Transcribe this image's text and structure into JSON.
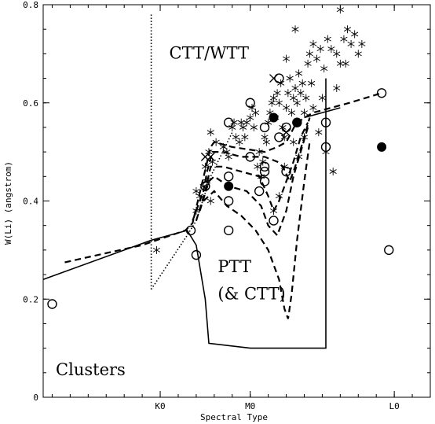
{
  "chart_data": {
    "type": "scatter",
    "xlabel": "Spectral Type",
    "ylabel": "W(Li) (angstrom)",
    "xlim": [
      -11.5,
      10
    ],
    "ylim": [
      0,
      0.8
    ],
    "x_ticks": [
      {
        "value": -5,
        "label": "K0"
      },
      {
        "value": 0,
        "label": "M0"
      },
      {
        "value": 8,
        "label": "L0"
      }
    ],
    "y_ticks": [
      {
        "value": 0,
        "label": "0"
      },
      {
        "value": 0.2,
        "label": "0.2"
      },
      {
        "value": 0.4,
        "label": "0.4"
      },
      {
        "value": 0.6,
        "label": "0.6"
      },
      {
        "value": 0.8,
        "label": "0.8"
      }
    ],
    "regions": [
      {
        "label": "CTT/WTT",
        "x": -4.5,
        "y": 0.69
      },
      {
        "label": "PTT",
        "x": -1.8,
        "y": 0.255
      },
      {
        "label": "(& CTT)",
        "x": -1.8,
        "y": 0.2
      },
      {
        "label": "Clusters",
        "x": -10.8,
        "y": 0.045
      }
    ],
    "series": [
      {
        "marker": "asterisk",
        "points": [
          [
            -5.2,
            0.3
          ],
          [
            -3.0,
            0.38
          ],
          [
            -3.0,
            0.42
          ],
          [
            -2.8,
            0.41
          ],
          [
            -2.6,
            0.43
          ],
          [
            -2.5,
            0.47
          ],
          [
            -2.3,
            0.5
          ],
          [
            -2.4,
            0.44
          ],
          [
            -2.2,
            0.4
          ],
          [
            -2.1,
            0.48
          ],
          [
            -2.2,
            0.54
          ],
          [
            -1.9,
            0.52
          ],
          [
            -1.5,
            0.51
          ],
          [
            -1.3,
            0.5
          ],
          [
            -1.2,
            0.49
          ],
          [
            -1.0,
            0.55
          ],
          [
            -0.9,
            0.56
          ],
          [
            -0.8,
            0.53
          ],
          [
            -0.6,
            0.52
          ],
          [
            -0.4,
            0.55
          ],
          [
            -0.2,
            0.56
          ],
          [
            0,
            0.57
          ],
          [
            0.2,
            0.55
          ],
          [
            0.3,
            0.58
          ],
          [
            0.4,
            0.47
          ],
          [
            0.6,
            0.45
          ],
          [
            0.7,
            0.48
          ],
          [
            0.8,
            0.53
          ],
          [
            0.9,
            0.52
          ],
          [
            1.0,
            0.56
          ],
          [
            1.1,
            0.58
          ],
          [
            1.2,
            0.6
          ],
          [
            1.3,
            0.61
          ],
          [
            1.4,
            0.57
          ],
          [
            1.5,
            0.62
          ],
          [
            1.6,
            0.6
          ],
          [
            1.7,
            0.64
          ],
          [
            1.8,
            0.55
          ],
          [
            1.9,
            0.53
          ],
          [
            2.0,
            0.59
          ],
          [
            2.1,
            0.62
          ],
          [
            2.2,
            0.65
          ],
          [
            2.3,
            0.58
          ],
          [
            2.4,
            0.61
          ],
          [
            2.5,
            0.63
          ],
          [
            2.6,
            0.6
          ],
          [
            2.7,
            0.66
          ],
          [
            2.8,
            0.62
          ],
          [
            2.9,
            0.64
          ],
          [
            3.0,
            0.58
          ],
          [
            3.1,
            0.61
          ],
          [
            3.2,
            0.68
          ],
          [
            3.3,
            0.7
          ],
          [
            3.5,
            0.72
          ],
          [
            3.7,
            0.69
          ],
          [
            3.9,
            0.71
          ],
          [
            4.1,
            0.67
          ],
          [
            4.3,
            0.73
          ],
          [
            4.5,
            0.71
          ],
          [
            4.8,
            0.7
          ],
          [
            5.0,
            0.68
          ],
          [
            5.2,
            0.73
          ],
          [
            5.4,
            0.75
          ],
          [
            5.6,
            0.72
          ],
          [
            5.0,
            0.79
          ],
          [
            5.8,
            0.74
          ],
          [
            6.0,
            0.7
          ],
          [
            2.0,
            0.69
          ],
          [
            2.5,
            0.75
          ],
          [
            3.4,
            0.64
          ],
          [
            1.3,
            0.38
          ],
          [
            1.6,
            0.41
          ],
          [
            2.4,
            0.52
          ],
          [
            3.8,
            0.54
          ],
          [
            4.2,
            0.5
          ],
          [
            4.6,
            0.46
          ],
          [
            4.8,
            0.63
          ],
          [
            5.3,
            0.68
          ],
          [
            6.2,
            0.72
          ],
          [
            3.0,
            0.53
          ],
          [
            3.5,
            0.59
          ],
          [
            4.0,
            0.61
          ],
          [
            0.5,
            0.5
          ],
          [
            -0.5,
            0.56
          ],
          [
            -0.3,
            0.53
          ],
          [
            0.1,
            0.59
          ],
          [
            1.9,
            0.47
          ],
          [
            2.7,
            0.49
          ]
        ]
      },
      {
        "marker": "open-circle",
        "points": [
          [
            -11,
            0.19
          ],
          [
            -3.3,
            0.34
          ],
          [
            -3.0,
            0.29
          ],
          [
            -2.5,
            0.43
          ],
          [
            -1.2,
            0.56
          ],
          [
            -1.2,
            0.4
          ],
          [
            -1.2,
            0.34
          ],
          [
            -1.2,
            0.45
          ],
          [
            0,
            0.6
          ],
          [
            0,
            0.49
          ],
          [
            0.5,
            0.42
          ],
          [
            0.8,
            0.55
          ],
          [
            0.8,
            0.47
          ],
          [
            0.8,
            0.46
          ],
          [
            0.8,
            0.44
          ],
          [
            1.3,
            0.36
          ],
          [
            1.6,
            0.53
          ],
          [
            1.6,
            0.65
          ],
          [
            2.0,
            0.46
          ],
          [
            2.0,
            0.55
          ],
          [
            2.6,
            0.56
          ],
          [
            4.2,
            0.56
          ],
          [
            4.2,
            0.51
          ],
          [
            7.3,
            0.62
          ],
          [
            7.7,
            0.3
          ]
        ]
      },
      {
        "marker": "filled-circle",
        "points": [
          [
            -1.2,
            0.43
          ],
          [
            1.3,
            0.57
          ],
          [
            2.6,
            0.56
          ],
          [
            7.3,
            0.51
          ]
        ]
      },
      {
        "marker": "cross",
        "points": [
          [
            -2.5,
            0.49
          ],
          [
            -2.2,
            0.49
          ],
          [
            1.3,
            0.65
          ],
          [
            2.0,
            0.54
          ]
        ]
      }
    ],
    "lines": [
      {
        "style": "solid",
        "points": [
          [
            -11.5,
            0.24
          ],
          [
            -5.5,
            0.32
          ],
          [
            -3.5,
            0.34
          ],
          [
            -3.0,
            0.31
          ],
          [
            -2.5,
            0.2
          ],
          [
            -2.3,
            0.11
          ],
          [
            0,
            0.1
          ],
          [
            4.2,
            0.1
          ],
          [
            4.2,
            0.65
          ]
        ]
      },
      {
        "style": "solid",
        "points": [
          [
            3.0,
            0.57
          ],
          [
            4.5,
            0.585
          ],
          [
            5.0,
            0.59
          ]
        ]
      },
      {
        "style": "dotted",
        "points": [
          [
            -5.5,
            0.78
          ],
          [
            -5.5,
            0.22
          ]
        ]
      },
      {
        "style": "dotted",
        "points": [
          [
            -5.5,
            0.22
          ],
          [
            -3.5,
            0.33
          ],
          [
            -3.0,
            0.36
          ],
          [
            -2.2,
            0.45
          ],
          [
            -1.0,
            0.54
          ]
        ]
      },
      {
        "style": "dashed",
        "points": [
          [
            -10.3,
            0.275
          ],
          [
            -6.0,
            0.31
          ],
          [
            -3.6,
            0.34
          ],
          [
            -3.2,
            0.355
          ],
          [
            -2.2,
            0.51
          ],
          [
            -2.0,
            0.52
          ],
          [
            -1.0,
            0.51
          ],
          [
            0.8,
            0.5
          ],
          [
            1.5,
            0.51
          ],
          [
            2.0,
            0.52
          ],
          [
            2.5,
            0.555
          ],
          [
            3.0,
            0.57
          ],
          [
            3.5,
            0.58
          ],
          [
            4.5,
            0.59
          ],
          [
            5.5,
            0.6
          ],
          [
            7.3,
            0.62
          ]
        ]
      },
      {
        "style": "dashed",
        "points": [
          [
            -3.2,
            0.36
          ],
          [
            -2.6,
            0.42
          ],
          [
            -2.4,
            0.46
          ],
          [
            -2.1,
            0.5
          ],
          [
            -1.5,
            0.5
          ],
          [
            -0.5,
            0.49
          ],
          [
            0.8,
            0.49
          ],
          [
            1.5,
            0.48
          ],
          [
            1.8,
            0.47
          ],
          [
            2.2,
            0.44
          ],
          [
            2.5,
            0.47
          ],
          [
            3.0,
            0.53
          ],
          [
            3.3,
            0.57
          ]
        ]
      },
      {
        "style": "dashed",
        "points": [
          [
            -3.0,
            0.36
          ],
          [
            -2.5,
            0.42
          ],
          [
            -2.2,
            0.47
          ],
          [
            -1.5,
            0.47
          ],
          [
            -0.5,
            0.46
          ],
          [
            0.5,
            0.45
          ],
          [
            1.0,
            0.41
          ],
          [
            1.3,
            0.38
          ],
          [
            1.6,
            0.4
          ],
          [
            2.0,
            0.44
          ],
          [
            2.4,
            0.48
          ],
          [
            2.8,
            0.53
          ],
          [
            3.2,
            0.56
          ]
        ]
      },
      {
        "style": "dashed",
        "points": [
          [
            -2.8,
            0.38
          ],
          [
            -2.3,
            0.44
          ],
          [
            -2.0,
            0.45
          ],
          [
            -1.2,
            0.43
          ],
          [
            -0.2,
            0.42
          ],
          [
            0.6,
            0.39
          ],
          [
            1.0,
            0.35
          ],
          [
            1.5,
            0.33
          ],
          [
            2.0,
            0.38
          ],
          [
            2.4,
            0.45
          ],
          [
            2.8,
            0.5
          ],
          [
            3.2,
            0.55
          ]
        ]
      },
      {
        "style": "dashed",
        "points": [
          [
            -2.6,
            0.4
          ],
          [
            -2.0,
            0.42
          ],
          [
            -1.3,
            0.39
          ],
          [
            -0.5,
            0.37
          ],
          [
            0.3,
            0.34
          ],
          [
            1.0,
            0.3
          ],
          [
            1.6,
            0.24
          ],
          [
            1.9,
            0.18
          ],
          [
            2.1,
            0.16
          ],
          [
            2.3,
            0.21
          ],
          [
            2.6,
            0.32
          ],
          [
            3.0,
            0.44
          ],
          [
            3.3,
            0.52
          ]
        ]
      }
    ]
  }
}
